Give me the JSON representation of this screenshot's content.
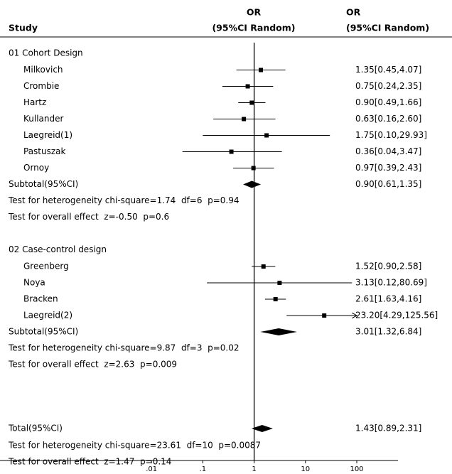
{
  "chart_data": {
    "type": "forest",
    "columns": {
      "study": "Study",
      "plot": [
        "OR",
        "(95%CI Random)"
      ],
      "estimate": [
        "OR",
        "(95%CI Random)"
      ]
    },
    "xscale": "log",
    "xlim": [
      0.001,
      100
    ],
    "xticks": [
      {
        "value": 0.01,
        "label": ".01"
      },
      {
        "value": 0.1,
        "label": ".1"
      },
      1,
      10,
      100
    ],
    "reference": 1,
    "groups": [
      {
        "name": "01 Cohort Design",
        "studies": [
          {
            "name": "Milkovich",
            "or": 1.35,
            "lower": 0.45,
            "upper": 4.07,
            "value_label": "1.35[0.45,4.07]"
          },
          {
            "name": "Crombie",
            "or": 0.75,
            "lower": 0.24,
            "upper": 2.35,
            "value_label": "0.75[0.24,2.35]"
          },
          {
            "name": "Hartz",
            "or": 0.9,
            "lower": 0.49,
            "upper": 1.66,
            "value_label": "0.90[0.49,1.66]"
          },
          {
            "name": "Kullander",
            "or": 0.63,
            "lower": 0.16,
            "upper": 2.6,
            "value_label": "0.63[0.16,2.60]"
          },
          {
            "name": "Laegreid(1)",
            "or": 1.75,
            "lower": 0.1,
            "upper": 29.93,
            "value_label": "1.75[0.10,29.93]"
          },
          {
            "name": "Pastuszak",
            "or": 0.36,
            "lower": 0.04,
            "upper": 3.47,
            "value_label": "0.36[0.04,3.47]"
          },
          {
            "name": "Ornoy",
            "or": 0.97,
            "lower": 0.39,
            "upper": 2.43,
            "value_label": "0.97[0.39,2.43]"
          }
        ],
        "subtotal": {
          "name": "Subtotal(95%CI)",
          "or": 0.9,
          "lower": 0.61,
          "upper": 1.35,
          "value_label": "0.90[0.61,1.35]"
        },
        "tests": [
          "Test for heterogeneity chi-square=1.74  df=6  p=0.94",
          "Test for overall effect  z=-0.50  p=0.6"
        ]
      },
      {
        "name": "02 Case-control design",
        "studies": [
          {
            "name": "Greenberg",
            "or": 1.52,
            "lower": 0.9,
            "upper": 2.58,
            "value_label": "1.52[0.90,2.58]"
          },
          {
            "name": "Noya",
            "or": 3.13,
            "lower": 0.12,
            "upper": 80.69,
            "value_label": "3.13[0.12,80.69]"
          },
          {
            "name": "Bracken",
            "or": 2.61,
            "lower": 1.63,
            "upper": 4.16,
            "value_label": "2.61[1.63,4.16]"
          },
          {
            "name": "Laegreid(2)",
            "or": 23.2,
            "lower": 4.29,
            "upper": 125.56,
            "value_label": "23.20[4.29,125.56]"
          }
        ],
        "subtotal": {
          "name": "Subtotal(95%CI)",
          "or": 3.01,
          "lower": 1.32,
          "upper": 6.84,
          "value_label": "3.01[1.32,6.84]"
        },
        "tests": [
          "Test for heterogeneity chi-square=9.87  df=3  p=0.02",
          "Test for overall effect  z=2.63  p=0.009"
        ]
      }
    ],
    "total": {
      "name": "Total(95%CI)",
      "or": 1.43,
      "lower": 0.89,
      "upper": 2.31,
      "value_label": "1.43[0.89,2.31]",
      "tests": [
        "Test for heterogeneity chi-square=23.61  df=10  p=0.0087",
        "Test for overall effect  z=1.47  p=0.14"
      ]
    }
  }
}
